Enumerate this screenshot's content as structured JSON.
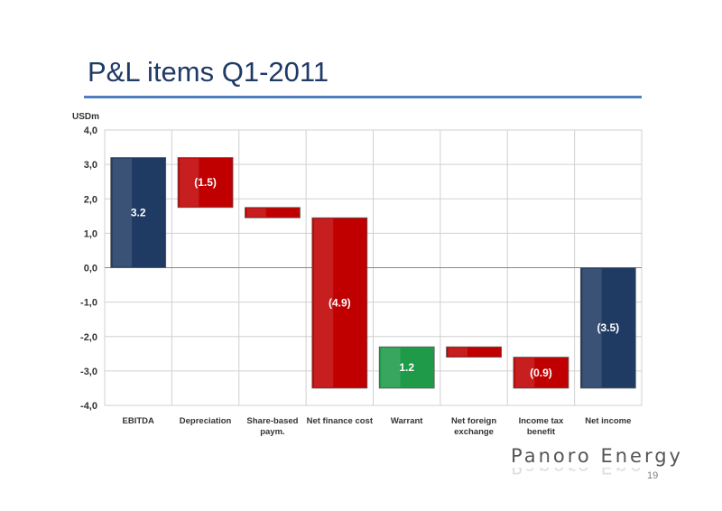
{
  "slide": {
    "title": "P&L items Q1-2011",
    "page_number": "19",
    "logo_text": "Panoro Energy"
  },
  "colors": {
    "positive_total": "#1f3b63",
    "negative": "#c00000",
    "positive_change": "#1e9a49",
    "grid": "#d0d0d0",
    "title": "#1f3a66",
    "rule": "#4f7fbf"
  },
  "chart_data": {
    "type": "bar",
    "subtype": "waterfall",
    "unit_label": "USDm",
    "ylim": [
      -4.0,
      4.0
    ],
    "yticks": [
      "4,0",
      "3,0",
      "2,0",
      "1,0",
      "0,0",
      "-1,0",
      "-2,0",
      "-3,0",
      "-4,0"
    ],
    "ytick_values": [
      4,
      3,
      2,
      1,
      0,
      -1,
      -2,
      -3,
      -4
    ],
    "grid": true,
    "categories": [
      "EBITDA",
      "Depreciation",
      "Share-based paym.",
      "Net finance cost",
      "Warrant",
      "Net foreign exchange",
      "Income tax benefit",
      "Net income"
    ],
    "bars": [
      {
        "category": "EBITDA",
        "start": 0.0,
        "end": 3.2,
        "kind": "total",
        "label": "3.2"
      },
      {
        "category": "Depreciation",
        "start": 3.2,
        "end": 1.75,
        "kind": "negative",
        "label": "(1.5)"
      },
      {
        "category": "Share-based paym.",
        "start": 1.75,
        "end": 1.45,
        "kind": "negative",
        "label": ""
      },
      {
        "category": "Net finance cost",
        "start": 1.45,
        "end": -3.5,
        "kind": "negative",
        "label": "(4.9)"
      },
      {
        "category": "Warrant",
        "start": -3.5,
        "end": -2.3,
        "kind": "positive",
        "label": "1.2"
      },
      {
        "category": "Net foreign exchange",
        "start": -2.3,
        "end": -2.6,
        "kind": "negative",
        "label": ""
      },
      {
        "category": "Income tax benefit",
        "start": -2.6,
        "end": -3.5,
        "kind": "negative",
        "label": "(0.9)"
      },
      {
        "category": "Net income",
        "start": 0.0,
        "end": -3.5,
        "kind": "total",
        "label": "(3.5)"
      }
    ]
  }
}
